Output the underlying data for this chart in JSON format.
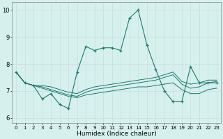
{
  "xlabel": "Humidex (Indice chaleur)",
  "bg_color": "#d6f0ee",
  "grid_color": "#c8dede",
  "line_color": "#1a7a6e",
  "x_ticks": [
    0,
    1,
    2,
    3,
    4,
    5,
    6,
    7,
    8,
    9,
    10,
    11,
    12,
    13,
    14,
    15,
    16,
    17,
    18,
    19,
    20,
    21,
    22,
    23
  ],
  "ylim": [
    5.8,
    10.3
  ],
  "xlim": [
    -0.5,
    23.5
  ],
  "yticks": [
    6,
    7,
    8,
    9,
    10
  ],
  "line1_x": [
    0,
    1,
    2,
    3,
    4,
    5,
    6,
    7,
    8,
    9,
    10,
    11,
    12,
    13,
    14,
    15,
    16,
    17,
    18,
    19,
    20,
    21,
    22,
    23
  ],
  "line1_y": [
    7.7,
    7.3,
    7.2,
    6.7,
    6.9,
    6.5,
    6.35,
    7.7,
    8.65,
    8.5,
    8.6,
    8.6,
    8.5,
    9.7,
    10.0,
    8.7,
    7.8,
    7.0,
    6.6,
    6.6,
    7.9,
    7.3,
    7.3,
    7.3
  ],
  "line2_x": [
    0,
    1,
    2,
    3,
    4,
    5,
    6,
    7,
    8,
    9,
    10,
    11,
    12,
    13,
    14,
    15,
    16,
    17,
    18,
    19,
    20,
    21,
    22,
    23
  ],
  "line2_y": [
    7.7,
    7.3,
    7.2,
    7.2,
    7.15,
    7.05,
    6.95,
    6.9,
    7.05,
    7.15,
    7.2,
    7.25,
    7.3,
    7.35,
    7.4,
    7.45,
    7.5,
    7.6,
    7.7,
    7.35,
    7.25,
    7.3,
    7.4,
    7.4
  ],
  "line3_x": [
    0,
    1,
    2,
    3,
    4,
    5,
    6,
    7,
    8,
    9,
    10,
    11,
    12,
    13,
    14,
    15,
    16,
    17,
    18,
    19,
    20,
    21,
    22,
    23
  ],
  "line3_y": [
    7.7,
    7.3,
    7.2,
    7.15,
    7.05,
    6.95,
    6.85,
    6.8,
    6.95,
    7.05,
    7.1,
    7.15,
    7.2,
    7.25,
    7.3,
    7.35,
    7.4,
    7.5,
    7.6,
    7.25,
    7.1,
    7.15,
    7.3,
    7.35
  ],
  "line4_x": [
    0,
    1,
    2,
    3,
    4,
    5,
    6,
    7,
    8,
    9,
    10,
    11,
    12,
    13,
    14,
    15,
    16,
    17,
    18,
    19,
    20,
    21,
    22,
    23
  ],
  "line4_y": [
    7.7,
    7.3,
    7.2,
    7.1,
    7.0,
    6.9,
    6.8,
    6.75,
    6.85,
    6.9,
    6.95,
    7.0,
    7.05,
    7.1,
    7.15,
    7.15,
    7.2,
    7.25,
    7.3,
    7.05,
    6.9,
    6.9,
    7.05,
    7.1
  ]
}
